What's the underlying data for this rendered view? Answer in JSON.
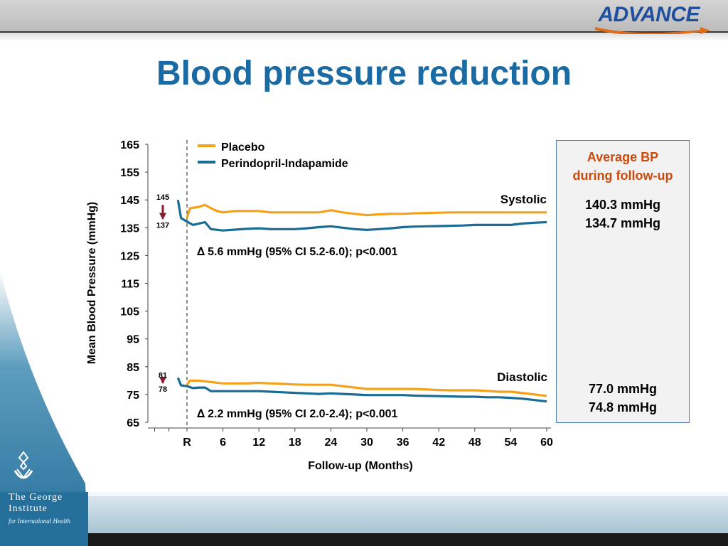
{
  "header": {
    "logo_text": "ADVANCE"
  },
  "title": "Blood pressure reduction",
  "institute": {
    "line1": "The George",
    "line2": "Institute",
    "line3": "for International Health"
  },
  "colors": {
    "placebo": "#f5a21b",
    "active": "#1a6c94",
    "marker": "#8b1a2e",
    "title": "#1a6aa3",
    "accent": "#cc4a0c"
  },
  "chart_data": {
    "type": "line",
    "xlabel": "Follow-up (Months)",
    "ylabel": "Mean Blood Pressure (mmHg)",
    "ylim": [
      65,
      165
    ],
    "xlim": [
      -3,
      60
    ],
    "yticks": [
      65,
      75,
      85,
      95,
      105,
      115,
      125,
      135,
      145,
      155,
      165
    ],
    "xticks": [
      {
        "x": 0,
        "label": "R"
      },
      {
        "x": 6,
        "label": "6"
      },
      {
        "x": 12,
        "label": "12"
      },
      {
        "x": 18,
        "label": "18"
      },
      {
        "x": 24,
        "label": "24"
      },
      {
        "x": 30,
        "label": "30"
      },
      {
        "x": 36,
        "label": "36"
      },
      {
        "x": 42,
        "label": "42"
      },
      {
        "x": 48,
        "label": "48"
      },
      {
        "x": 54,
        "label": "54"
      },
      {
        "x": 60,
        "label": "60"
      }
    ],
    "legend": {
      "position": "top-left",
      "entries": [
        "Placebo",
        "Perindopril-Indapamide"
      ]
    },
    "series": [
      {
        "name": "Placebo",
        "group": "Systolic",
        "color": "#f5a21b",
        "x": [
          0,
          0.5,
          2,
          3,
          4,
          5,
          6,
          8,
          10,
          12,
          14,
          16,
          18,
          20,
          22,
          24,
          26,
          28,
          30,
          32,
          34,
          36,
          38,
          40,
          42,
          44,
          46,
          48,
          50,
          52,
          54,
          56,
          58,
          60
        ],
        "y": [
          138.5,
          142,
          142.5,
          143.2,
          142,
          141,
          140.5,
          141,
          141,
          141,
          140.5,
          140.5,
          140.5,
          140.5,
          140.5,
          141.3,
          140.5,
          140,
          139.5,
          139.8,
          140,
          140,
          140.2,
          140.3,
          140.4,
          140.5,
          140.5,
          140.5,
          140.5,
          140.5,
          140.5,
          140.5,
          140.5,
          140.5
        ]
      },
      {
        "name": "Perindopril-Indapamide",
        "group": "Systolic",
        "color": "#1a6c94",
        "x": [
          -1.5,
          -1,
          0,
          1,
          2,
          3,
          4,
          6,
          8,
          10,
          12,
          14,
          16,
          18,
          20,
          22,
          24,
          26,
          28,
          30,
          32,
          34,
          36,
          38,
          40,
          42,
          44,
          46,
          48,
          50,
          52,
          54,
          56,
          58,
          60
        ],
        "y": [
          145,
          138.5,
          137.2,
          136,
          136.5,
          137,
          134.5,
          134,
          134.3,
          134.6,
          134.8,
          134.5,
          134.5,
          134.5,
          134.8,
          135.2,
          135.5,
          135,
          134.5,
          134.2,
          134.5,
          134.8,
          135.2,
          135.4,
          135.5,
          135.6,
          135.7,
          135.8,
          136,
          136,
          136,
          136,
          136.5,
          136.8,
          137
        ]
      },
      {
        "name": "Placebo",
        "group": "Diastolic",
        "color": "#f5a21b",
        "x": [
          0,
          0.5,
          2,
          4,
          6,
          8,
          10,
          12,
          14,
          16,
          18,
          20,
          22,
          24,
          26,
          28,
          30,
          32,
          34,
          36,
          38,
          40,
          42,
          44,
          46,
          48,
          50,
          52,
          54,
          56,
          58,
          60
        ],
        "y": [
          78.5,
          80,
          80,
          79.5,
          79,
          79,
          79,
          79.2,
          79,
          78.8,
          78.6,
          78.5,
          78.5,
          78.5,
          78,
          77.5,
          77,
          77,
          77,
          77,
          77,
          76.8,
          76.6,
          76.5,
          76.5,
          76.5,
          76.3,
          76,
          76,
          75.5,
          75,
          74.5
        ]
      },
      {
        "name": "Perindopril-Indapamide",
        "group": "Diastolic",
        "color": "#1a6c94",
        "x": [
          -1.5,
          -1,
          0,
          1,
          2,
          3,
          4,
          6,
          8,
          10,
          12,
          14,
          16,
          18,
          20,
          22,
          24,
          26,
          28,
          30,
          32,
          34,
          36,
          38,
          40,
          42,
          44,
          46,
          48,
          50,
          52,
          54,
          56,
          58,
          60
        ],
        "y": [
          81,
          78.3,
          78,
          77.3,
          77.5,
          77.5,
          76.2,
          76.2,
          76.2,
          76.2,
          76.2,
          76,
          75.8,
          75.6,
          75.4,
          75.2,
          75.4,
          75.2,
          75,
          74.8,
          74.8,
          74.8,
          74.8,
          74.6,
          74.5,
          74.4,
          74.3,
          74.2,
          74.2,
          74,
          74,
          73.8,
          73.5,
          73,
          72.5
        ]
      }
    ],
    "baseline_markers": [
      {
        "from": 145,
        "to": 137,
        "label_top": "145",
        "label_bottom": "137"
      },
      {
        "from": 81,
        "to": 78,
        "label_top": "81",
        "label_bottom": "78"
      }
    ],
    "annotations": {
      "systolic_label": "Systolic",
      "diastolic_label": "Diastolic",
      "systolic_delta_symbol": "∆",
      "systolic_delta": "5.6 mmHg (95% CI 5.2-6.0); p<0.001",
      "diastolic_delta_symbol": "∆",
      "diastolic_delta": "2.2 mmHg (95% CI 2.0-2.4); p<0.001"
    },
    "average_box": {
      "title_line1": "Average BP",
      "title_line2": "during follow-up",
      "systolic_placebo": "140.3 mmHg",
      "systolic_active": "134.7 mmHg",
      "diastolic_placebo": "77.0 mmHg",
      "diastolic_active": "74.8 mmHg"
    }
  }
}
